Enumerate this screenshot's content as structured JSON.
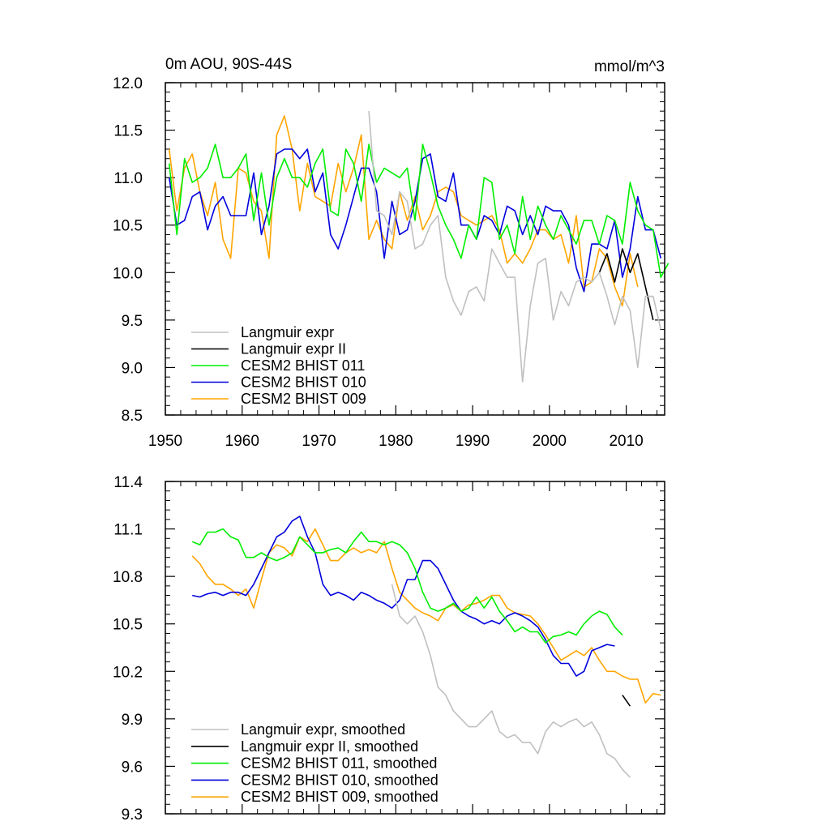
{
  "colors": {
    "langmuir": "#c0c0c0",
    "langmuir2": "#000000",
    "bhist011": "#00ee00",
    "bhist010": "#0000dd",
    "bhist009": "#ffa500"
  },
  "chart_data": [
    {
      "type": "line",
      "title": "0m AOU, 90S-44S",
      "units": "mmol/m^3",
      "xlabel": "",
      "ylabel": "",
      "xlim": [
        1950,
        2015
      ],
      "ylim": [
        8.5,
        12.0
      ],
      "xticks": [
        1950,
        1960,
        1970,
        1980,
        1990,
        2000,
        2010
      ],
      "xtick_labels": [
        "1950",
        "1960",
        "1970",
        "1980",
        "1990",
        "2000",
        "2010"
      ],
      "yticks": [
        8.5,
        9.0,
        9.5,
        10.0,
        10.5,
        11.0,
        11.5,
        12.0
      ],
      "ytick_labels": [
        "8.5",
        "9.0",
        "9.5",
        "10.0",
        "10.5",
        "11.0",
        "11.5",
        "12.0"
      ],
      "legend": "bottom-left",
      "series": [
        {
          "name": "Langmuir expr",
          "color_key": "langmuir",
          "x0": 1976.5,
          "values": [
            11.7,
            10.65,
            10.6,
            10.4,
            10.85,
            10.75,
            10.25,
            10.3,
            10.5,
            10.6,
            9.95,
            9.7,
            9.55,
            9.8,
            9.85,
            9.7,
            10.25,
            10.1,
            9.95,
            9.95,
            8.85,
            9.65,
            10.1,
            10.15,
            9.5,
            9.8,
            9.65,
            9.9,
            9.95,
            9.9,
            10.0,
            9.75,
            9.45,
            9.75,
            9.6,
            9.0,
            9.75,
            9.75,
            9.4
          ]
        },
        {
          "name": "Langmuir expr II",
          "color_key": "langmuir2",
          "x0": 2006.5,
          "values": [
            10.0,
            10.2,
            9.9,
            10.25,
            10.0,
            10.2,
            9.85,
            9.5
          ]
        },
        {
          "name": "CESM2 BHIST 011",
          "color_key": "bhist011",
          "x0": 1950.5,
          "values": [
            11.15,
            10.4,
            11.2,
            10.95,
            11.0,
            11.1,
            11.35,
            11.0,
            11.0,
            11.1,
            11.25,
            10.55,
            11.05,
            10.5,
            11.0,
            11.2,
            11.0,
            11.0,
            10.9,
            11.15,
            11.3,
            10.65,
            10.6,
            11.3,
            11.15,
            10.75,
            11.35,
            10.95,
            11.1,
            11.05,
            11.0,
            11.1,
            10.55,
            11.35,
            11.05,
            10.7,
            10.5,
            10.35,
            10.15,
            10.5,
            10.35,
            11.0,
            10.95,
            10.35,
            10.5,
            10.2,
            10.8,
            10.35,
            10.7,
            10.5,
            10.35,
            10.6,
            10.45,
            10.3,
            10.55,
            10.55,
            10.3,
            10.6,
            10.55,
            10.3,
            10.95,
            10.65,
            10.5,
            10.45,
            9.95,
            10.1
          ]
        },
        {
          "name": "CESM2 BHIST 010",
          "color_key": "bhist010",
          "x0": 1950.5,
          "values": [
            11.0,
            10.5,
            10.55,
            10.8,
            10.85,
            10.45,
            10.7,
            10.8,
            10.6,
            10.6,
            10.6,
            11.05,
            10.4,
            10.7,
            11.25,
            11.3,
            11.3,
            11.2,
            11.3,
            10.85,
            11.05,
            10.4,
            10.25,
            10.5,
            10.8,
            11.1,
            11.1,
            10.85,
            10.15,
            10.75,
            10.4,
            10.45,
            10.75,
            11.2,
            11.25,
            10.8,
            10.75,
            11.05,
            10.5,
            10.5,
            10.35,
            10.6,
            10.55,
            10.4,
            10.7,
            10.65,
            10.4,
            10.6,
            10.4,
            10.7,
            10.65,
            10.65,
            10.5,
            10.05,
            9.8,
            10.3,
            10.3,
            10.25,
            10.55,
            9.95,
            10.25,
            10.8,
            10.45,
            10.45,
            10.15
          ]
        },
        {
          "name": "CESM2 BHIST 009",
          "color_key": "bhist009",
          "x0": 1950.5,
          "values": [
            11.3,
            10.65,
            11.1,
            11.25,
            10.85,
            10.6,
            10.95,
            10.35,
            10.15,
            11.1,
            11.05,
            10.75,
            10.65,
            10.15,
            11.45,
            11.65,
            11.3,
            10.65,
            11.15,
            10.8,
            10.75,
            10.7,
            11.15,
            10.85,
            11.1,
            11.45,
            10.35,
            10.55,
            10.35,
            10.25,
            10.85,
            10.55,
            10.8,
            10.45,
            10.6,
            10.85,
            10.9,
            10.85,
            10.6,
            10.55,
            10.5,
            10.55,
            10.6,
            10.45,
            10.1,
            10.2,
            10.1,
            10.25,
            10.45,
            10.45,
            10.35,
            10.4,
            10.1,
            10.6,
            9.85,
            9.9,
            10.25,
            10.15,
            9.85,
            9.65,
            10.2,
            9.85
          ]
        }
      ]
    },
    {
      "type": "line",
      "title": "",
      "xlabel": "",
      "ylabel": "",
      "xlim": [
        1950,
        2015
      ],
      "ylim": [
        9.3,
        11.4
      ],
      "xticks": [
        1950,
        1960,
        1970,
        1980,
        1990,
        2000,
        2010
      ],
      "yticks": [
        9.3,
        9.6,
        9.9,
        10.2,
        10.5,
        10.8,
        11.1,
        11.4
      ],
      "ytick_labels": [
        "9.3",
        "9.6",
        "9.9",
        "10.2",
        "10.5",
        "10.8",
        "11.1",
        "11.4"
      ],
      "legend": "bottom-left",
      "series": [
        {
          "name": "Langmuir expr, smoothed",
          "color_key": "langmuir",
          "x0": 1979.5,
          "values": [
            10.75,
            10.55,
            10.5,
            10.55,
            10.45,
            10.3,
            10.1,
            10.05,
            9.95,
            9.9,
            9.85,
            9.85,
            9.9,
            9.95,
            9.82,
            9.78,
            9.8,
            9.75,
            9.75,
            9.68,
            9.82,
            9.88,
            9.85,
            9.88,
            9.9,
            9.85,
            9.88,
            9.8,
            9.68,
            9.65,
            9.58,
            9.53
          ]
        },
        {
          "name": "Langmuir expr II, smoothed",
          "color_key": "langmuir2",
          "x0": 2009.5,
          "values": [
            10.05,
            9.98
          ]
        },
        {
          "name": "CESM2 BHIST 011, smoothed",
          "color_key": "bhist011",
          "x0": 1953.5,
          "values": [
            11.02,
            11.0,
            11.08,
            11.08,
            11.1,
            11.05,
            11.03,
            10.92,
            10.92,
            10.95,
            10.92,
            10.9,
            10.92,
            10.95,
            11.05,
            11.0,
            10.95,
            10.95,
            10.97,
            10.98,
            10.95,
            11.02,
            11.08,
            11.02,
            11.02,
            11.0,
            11.02,
            11.0,
            10.95,
            10.85,
            10.7,
            10.6,
            10.58,
            10.6,
            10.63,
            10.58,
            10.6,
            10.67,
            10.6,
            10.67,
            10.58,
            10.52,
            10.45,
            10.48,
            10.45,
            10.45,
            10.38,
            10.42,
            10.43,
            10.45,
            10.43,
            10.5,
            10.55,
            10.58,
            10.56,
            10.48,
            10.43
          ]
        },
        {
          "name": "CESM2 BHIST 010, smoothed",
          "color_key": "bhist010",
          "x0": 1953.5,
          "values": [
            10.68,
            10.67,
            10.69,
            10.7,
            10.68,
            10.7,
            10.7,
            10.68,
            10.75,
            10.85,
            10.95,
            11.05,
            11.08,
            11.15,
            11.18,
            11.05,
            10.95,
            10.75,
            10.68,
            10.7,
            10.68,
            10.65,
            10.7,
            10.68,
            10.65,
            10.63,
            10.6,
            10.65,
            10.78,
            10.78,
            10.9,
            10.9,
            10.85,
            10.75,
            10.65,
            10.58,
            10.55,
            10.53,
            10.5,
            10.52,
            10.5,
            10.55,
            10.57,
            10.55,
            10.52,
            10.48,
            10.4,
            10.3,
            10.25,
            10.25,
            10.17,
            10.2,
            10.33,
            10.35,
            10.37,
            10.36
          ]
        },
        {
          "name": "CESM2 BHIST 009, smoothed",
          "color_key": "bhist009",
          "x0": 1953.5,
          "values": [
            10.93,
            10.88,
            10.8,
            10.75,
            10.75,
            10.72,
            10.68,
            10.72,
            10.6,
            10.78,
            10.95,
            11.0,
            10.98,
            10.93,
            11.05,
            11.02,
            11.1,
            11.0,
            10.9,
            10.9,
            10.95,
            10.98,
            10.95,
            10.97,
            10.95,
            11.02,
            10.85,
            10.7,
            10.65,
            10.6,
            10.57,
            10.55,
            10.52,
            10.6,
            10.62,
            10.58,
            10.62,
            10.63,
            10.65,
            10.68,
            10.68,
            10.6,
            10.57,
            10.56,
            10.55,
            10.5,
            10.43,
            10.35,
            10.27,
            10.3,
            10.33,
            10.3,
            10.35,
            10.27,
            10.2,
            10.2,
            10.17,
            10.15,
            10.15,
            10.0,
            10.06,
            10.05
          ]
        }
      ]
    }
  ]
}
